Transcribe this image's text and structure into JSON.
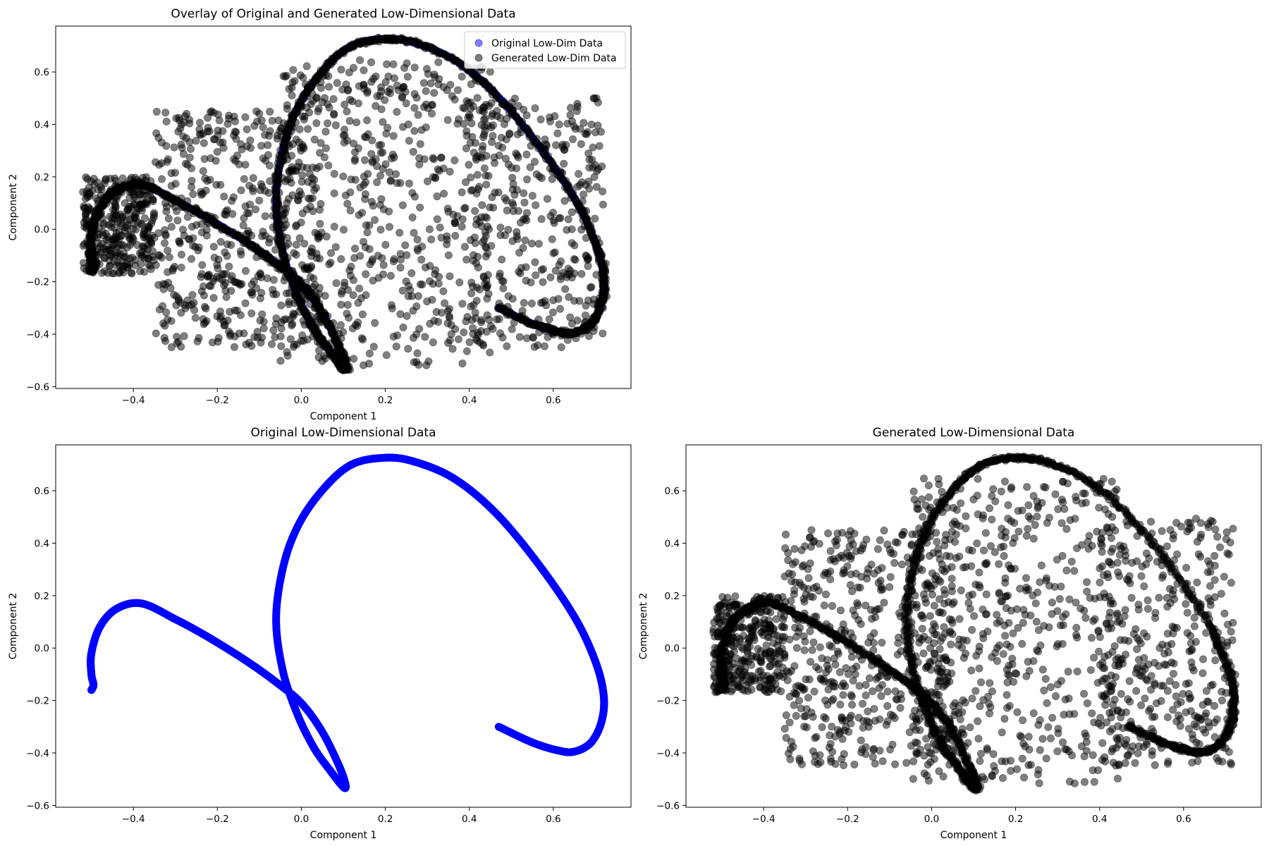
{
  "chart_data": [
    {
      "type": "scatter",
      "title": "Overlay of Original and Generated Low-Dimensional Data",
      "xlabel": "Component 1",
      "ylabel": "Component 2",
      "xlim": [
        -0.585,
        0.785
      ],
      "ylim": [
        -0.607,
        0.775
      ],
      "xticks": [
        -0.4,
        -0.2,
        0.0,
        0.2,
        0.4,
        0.6
      ],
      "yticks": [
        -0.6,
        -0.4,
        -0.2,
        0.0,
        0.2,
        0.4,
        0.6
      ],
      "xtick_labels": [
        "−0.4",
        "−0.2",
        "0.0",
        "0.2",
        "0.4",
        "0.6"
      ],
      "ytick_labels": [
        "−0.6",
        "−0.4",
        "−0.2",
        "0.0",
        "0.2",
        "0.4",
        "0.6"
      ],
      "legend": {
        "position": "top-right",
        "entries": [
          "Original Low-Dim Data",
          "Generated Low-Dim Data"
        ]
      },
      "series": [
        {
          "name": "Original Low-Dim Data",
          "color": "#0000ff",
          "alpha": 0.5,
          "draw_on_top": false,
          "curve": {
            "x": [
              0.47,
              0.55,
              0.61,
              0.65,
              0.69,
              0.715,
              0.72,
              0.7,
              0.65,
              0.56,
              0.46,
              0.36,
              0.26,
              0.19,
              0.12,
              0.06,
              0.0,
              -0.04,
              -0.06,
              -0.045,
              -0.01,
              0.03,
              0.07,
              0.1,
              0.105,
              0.09,
              0.05,
              0.0,
              -0.06,
              -0.13,
              -0.22,
              -0.3,
              -0.38,
              -0.44,
              -0.48,
              -0.5,
              -0.5,
              -0.495,
              -0.5
            ],
            "y": [
              -0.3,
              -0.36,
              -0.39,
              -0.395,
              -0.36,
              -0.28,
              -0.18,
              -0.05,
              0.12,
              0.33,
              0.52,
              0.65,
              0.715,
              0.725,
              0.7,
              0.62,
              0.49,
              0.33,
              0.12,
              -0.08,
              -0.25,
              -0.38,
              -0.47,
              -0.53,
              -0.52,
              -0.45,
              -0.32,
              -0.21,
              -0.13,
              -0.05,
              0.04,
              0.11,
              0.17,
              0.15,
              0.08,
              -0.02,
              -0.1,
              -0.14,
              -0.16
            ]
          }
        },
        {
          "name": "Generated Low-Dim Data",
          "color": "#000000",
          "alpha": 0.5,
          "draw_on_top": true,
          "curve": {
            "x": [
              0.47,
              0.55,
              0.61,
              0.65,
              0.69,
              0.715,
              0.72,
              0.7,
              0.65,
              0.56,
              0.46,
              0.36,
              0.26,
              0.19,
              0.12,
              0.06,
              0.0,
              -0.04,
              -0.06,
              -0.045,
              -0.01,
              0.03,
              0.07,
              0.1,
              0.105,
              0.09,
              0.05,
              0.0,
              -0.06,
              -0.13,
              -0.22,
              -0.3,
              -0.38,
              -0.44,
              -0.48,
              -0.5,
              -0.5,
              -0.495,
              -0.5
            ],
            "y": [
              -0.3,
              -0.36,
              -0.39,
              -0.395,
              -0.36,
              -0.28,
              -0.18,
              -0.05,
              0.12,
              0.33,
              0.52,
              0.65,
              0.715,
              0.725,
              0.7,
              0.62,
              0.49,
              0.33,
              0.12,
              -0.08,
              -0.25,
              -0.38,
              -0.47,
              -0.53,
              -0.52,
              -0.45,
              -0.32,
              -0.21,
              -0.13,
              -0.05,
              0.04,
              0.11,
              0.17,
              0.15,
              0.08,
              -0.02,
              -0.1,
              -0.14,
              -0.16
            ]
          },
          "scatter_regions": [
            {
              "x": [
                -0.52,
                -0.35
              ],
              "y": [
                -0.17,
                0.2
              ],
              "n": 340
            },
            {
              "x": [
                -0.35,
                0.05
              ],
              "y": [
                -0.45,
                0.45
              ],
              "n": 520
            },
            {
              "x": [
                -0.05,
                0.45
              ],
              "y": [
                -0.52,
                0.65
              ],
              "n": 560
            },
            {
              "x": [
                0.4,
                0.72
              ],
              "y": [
                -0.45,
                0.5
              ],
              "n": 360
            }
          ]
        }
      ]
    },
    {
      "type": "scatter",
      "title": "Original Low-Dimensional Data",
      "xlabel": "Component 1",
      "ylabel": "Component 2",
      "xlim": [
        -0.585,
        0.785
      ],
      "ylim": [
        -0.607,
        0.775
      ],
      "xticks": [
        -0.4,
        -0.2,
        0.0,
        0.2,
        0.4,
        0.6
      ],
      "yticks": [
        -0.6,
        -0.4,
        -0.2,
        0.0,
        0.2,
        0.4,
        0.6
      ],
      "xtick_labels": [
        "−0.4",
        "−0.2",
        "0.0",
        "0.2",
        "0.4",
        "0.6"
      ],
      "ytick_labels": [
        "−0.6",
        "−0.4",
        "−0.2",
        "0.0",
        "0.2",
        "0.4",
        "0.6"
      ],
      "series": [
        {
          "name": "",
          "color": "#0000ff",
          "alpha": 1.0,
          "curve": {
            "x": [
              0.47,
              0.55,
              0.61,
              0.65,
              0.69,
              0.715,
              0.72,
              0.7,
              0.65,
              0.56,
              0.46,
              0.36,
              0.26,
              0.19,
              0.12,
              0.06,
              0.0,
              -0.04,
              -0.06,
              -0.045,
              -0.01,
              0.03,
              0.07,
              0.1,
              0.105,
              0.09,
              0.05,
              0.0,
              -0.06,
              -0.13,
              -0.22,
              -0.3,
              -0.38,
              -0.44,
              -0.48,
              -0.5,
              -0.5,
              -0.495,
              -0.5
            ],
            "y": [
              -0.3,
              -0.36,
              -0.39,
              -0.395,
              -0.36,
              -0.28,
              -0.18,
              -0.05,
              0.12,
              0.33,
              0.52,
              0.65,
              0.715,
              0.725,
              0.7,
              0.62,
              0.49,
              0.33,
              0.12,
              -0.08,
              -0.25,
              -0.38,
              -0.47,
              -0.53,
              -0.52,
              -0.45,
              -0.32,
              -0.21,
              -0.13,
              -0.05,
              0.04,
              0.11,
              0.17,
              0.15,
              0.08,
              -0.02,
              -0.1,
              -0.14,
              -0.16
            ]
          }
        }
      ]
    },
    {
      "type": "scatter",
      "title": "Generated Low-Dimensional Data",
      "xlabel": "Component 1",
      "ylabel": "Component 2",
      "xlim": [
        -0.585,
        0.785
      ],
      "ylim": [
        -0.607,
        0.775
      ],
      "xticks": [
        -0.4,
        -0.2,
        0.0,
        0.2,
        0.4,
        0.6
      ],
      "yticks": [
        -0.6,
        -0.4,
        -0.2,
        0.0,
        0.2,
        0.4,
        0.6
      ],
      "xtick_labels": [
        "−0.4",
        "−0.2",
        "0.0",
        "0.2",
        "0.4",
        "0.6"
      ],
      "ytick_labels": [
        "−0.6",
        "−0.4",
        "−0.2",
        "0.0",
        "0.2",
        "0.4",
        "0.6"
      ],
      "series": [
        {
          "name": "",
          "color": "#000000",
          "alpha": 0.5,
          "curve": {
            "x": [
              0.47,
              0.55,
              0.61,
              0.65,
              0.69,
              0.715,
              0.72,
              0.7,
              0.65,
              0.56,
              0.46,
              0.36,
              0.26,
              0.19,
              0.12,
              0.06,
              0.0,
              -0.04,
              -0.06,
              -0.045,
              -0.01,
              0.03,
              0.07,
              0.1,
              0.105,
              0.09,
              0.05,
              0.0,
              -0.06,
              -0.13,
              -0.22,
              -0.3,
              -0.38,
              -0.44,
              -0.48,
              -0.5,
              -0.5,
              -0.495,
              -0.5
            ],
            "y": [
              -0.3,
              -0.36,
              -0.39,
              -0.395,
              -0.36,
              -0.28,
              -0.18,
              -0.05,
              0.12,
              0.33,
              0.52,
              0.65,
              0.715,
              0.725,
              0.7,
              0.62,
              0.49,
              0.33,
              0.12,
              -0.08,
              -0.25,
              -0.38,
              -0.47,
              -0.53,
              -0.52,
              -0.45,
              -0.32,
              -0.21,
              -0.13,
              -0.05,
              0.04,
              0.11,
              0.17,
              0.15,
              0.08,
              -0.02,
              -0.1,
              -0.14,
              -0.16
            ]
          },
          "scatter_regions": [
            {
              "x": [
                -0.52,
                -0.35
              ],
              "y": [
                -0.17,
                0.2
              ],
              "n": 340
            },
            {
              "x": [
                -0.35,
                0.05
              ],
              "y": [
                -0.45,
                0.45
              ],
              "n": 520
            },
            {
              "x": [
                -0.05,
                0.45
              ],
              "y": [
                -0.52,
                0.65
              ],
              "n": 560
            },
            {
              "x": [
                0.4,
                0.72
              ],
              "y": [
                -0.45,
                0.5
              ],
              "n": 360
            }
          ]
        }
      ]
    }
  ]
}
